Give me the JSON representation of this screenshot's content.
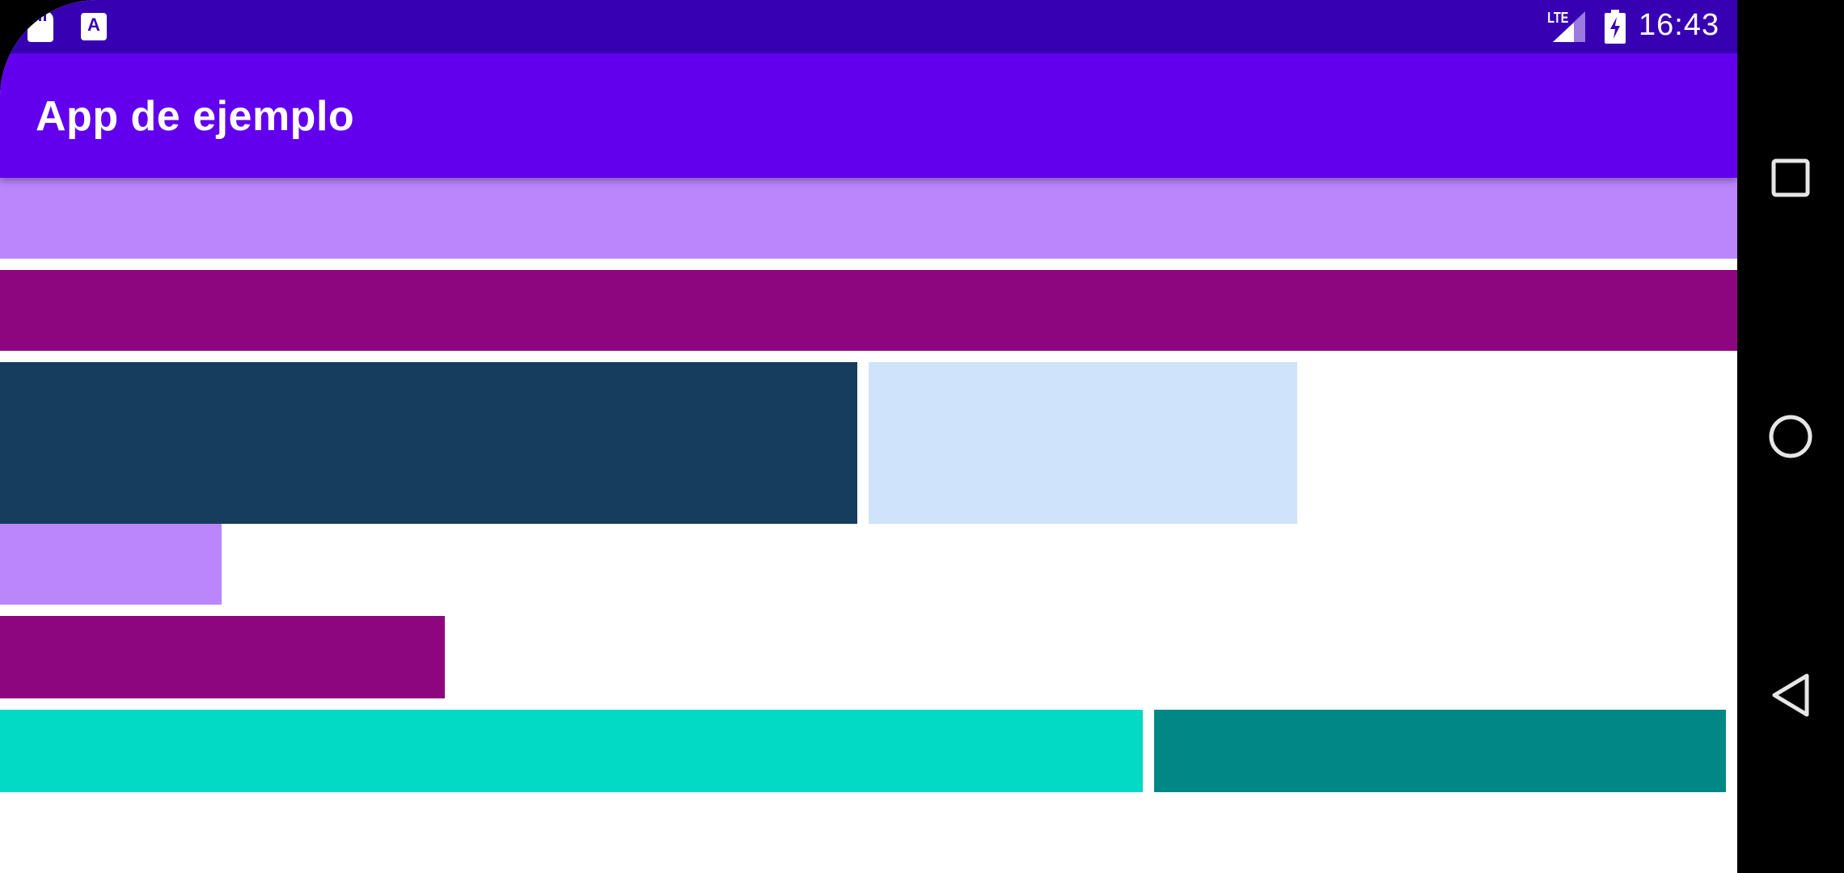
{
  "status_bar": {
    "time": "16:43",
    "network": "LTE",
    "icons": [
      "sd-card-icon",
      "text-a-icon",
      "signal-icon",
      "battery-charging-icon"
    ]
  },
  "app_bar": {
    "title": "App de ejemplo"
  },
  "colors": {
    "status_bar": "#3700B3",
    "app_bar": "#6200EE",
    "light_purple": "#BB86FC",
    "magenta": "#8E0580",
    "dark_blue": "#163C5E",
    "light_blue": "#CFE3FA",
    "teal_light": "#03DAC5",
    "teal_dark": "#018786"
  },
  "navigation_bar": {
    "buttons": [
      "recents-icon",
      "home-icon",
      "back-icon"
    ]
  }
}
